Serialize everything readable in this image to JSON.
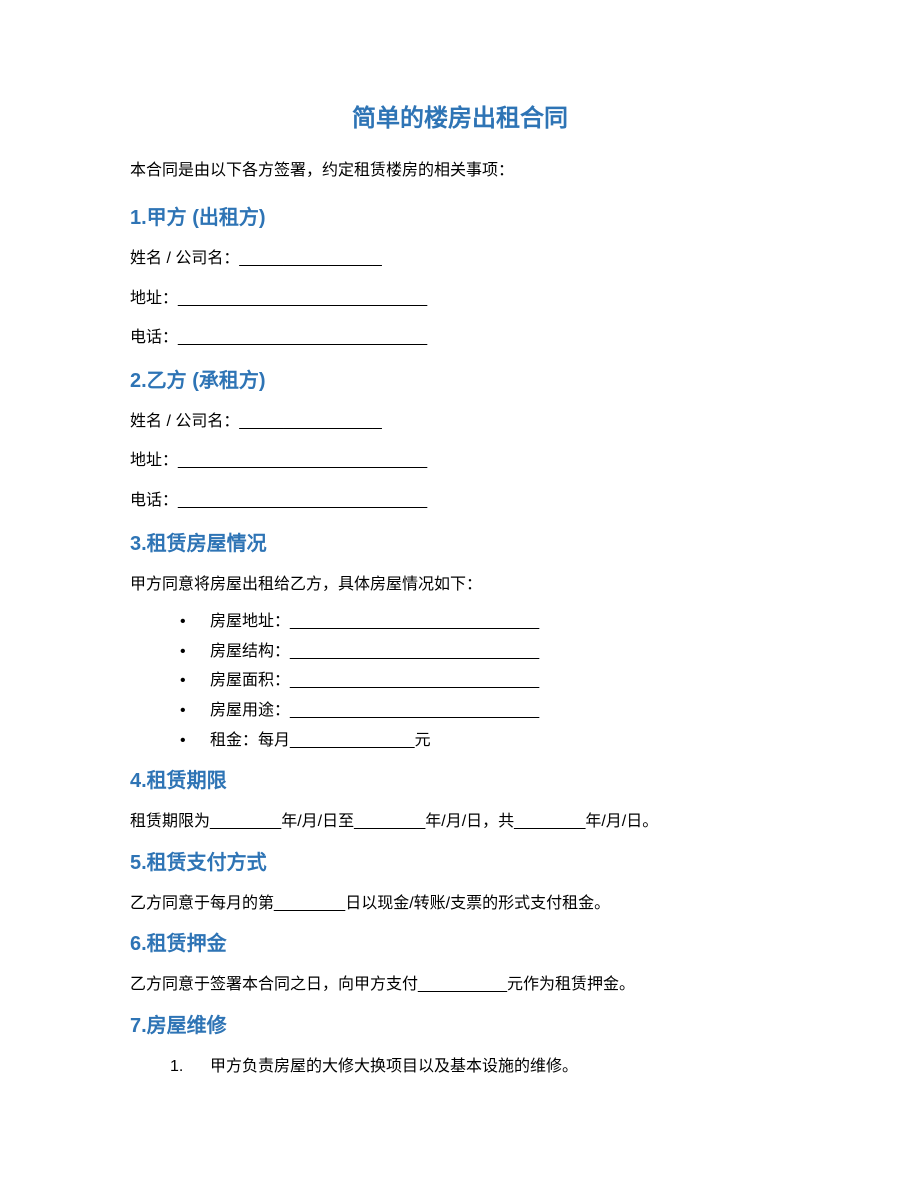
{
  "title": "简单的楼房出租合同",
  "intro": "本合同是由以下各方签署，约定租赁楼房的相关事项：",
  "colors": {
    "heading_color": "#2e74b5",
    "body_color": "#000000",
    "background_color": "#ffffff"
  },
  "typography": {
    "title_fontsize": 24,
    "heading_fontsize": 20,
    "body_fontsize": 16,
    "font_family": "Microsoft YaHei"
  },
  "sections": {
    "s1": {
      "heading": "1.甲方 (出租方)",
      "fields": {
        "name": "姓名 / 公司名：________________",
        "address": "地址：____________________________",
        "phone": "电话：____________________________"
      }
    },
    "s2": {
      "heading": "2.乙方 (承租方)",
      "fields": {
        "name": "姓名 / 公司名：________________",
        "address": "地址：____________________________",
        "phone": "电话：____________________________"
      }
    },
    "s3": {
      "heading": "3.租赁房屋情况",
      "intro": "甲方同意将房屋出租给乙方，具体房屋情况如下：",
      "items": [
        "房屋地址：____________________________",
        "房屋结构：____________________________",
        "房屋面积：____________________________",
        "房屋用途：____________________________",
        "租金：每月______________元"
      ]
    },
    "s4": {
      "heading": "4.租赁期限",
      "body": "租赁期限为________年/月/日至________年/月/日，共________年/月/日。"
    },
    "s5": {
      "heading": "5.租赁支付方式",
      "body": "乙方同意于每月的第________日以现金/转账/支票的形式支付租金。"
    },
    "s6": {
      "heading": "6.租赁押金",
      "body": "乙方同意于签署本合同之日，向甲方支付__________元作为租赁押金。"
    },
    "s7": {
      "heading": "7.房屋维修",
      "items": [
        {
          "num": "1.",
          "text": "甲方负责房屋的大修大换项目以及基本设施的维修。"
        }
      ]
    }
  }
}
